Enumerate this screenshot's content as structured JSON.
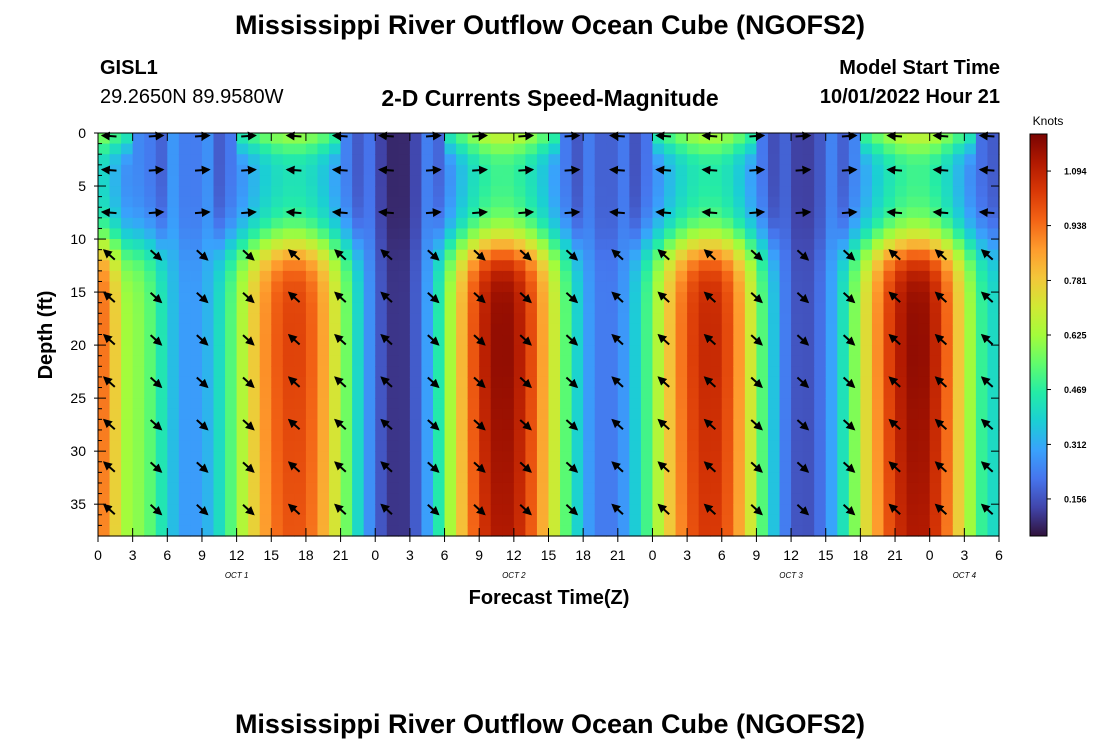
{
  "titles": {
    "main": "Mississippi River Outflow Ocean Cube (NGOFS2)",
    "repeat": "Mississippi River Outflow Ocean Cube (NGOFS2)"
  },
  "header": {
    "station": "GISL1",
    "coords": "29.2650N  89.9580W",
    "subtitle": "2-D Currents Speed-Magnitude",
    "model_start_label": "Model Start Time",
    "model_start_value": "10/01/2022 Hour 21"
  },
  "chart_data": {
    "type": "heatmap",
    "xlabel": "Forecast Time(Z)",
    "ylabel": "Depth (ft)",
    "xlim": [
      0,
      78
    ],
    "ylim": [
      0,
      38
    ],
    "x_tick_labels": [
      "0",
      "3",
      "6",
      "9",
      "12",
      "15",
      "18",
      "21",
      "0",
      "3",
      "6",
      "9",
      "12",
      "15",
      "18",
      "21",
      "0",
      "3",
      "6",
      "9",
      "12",
      "15",
      "18",
      "21",
      "0",
      "3",
      "6"
    ],
    "y_ticks": [
      0,
      5,
      10,
      15,
      20,
      25,
      30,
      35
    ],
    "day_labels": [
      {
        "text": "OCT 1",
        "hour": 12
      },
      {
        "text": "OCT 2",
        "hour": 36
      },
      {
        "text": "OCT 3",
        "hour": 60
      },
      {
        "text": "OCT 4",
        "hour": 75
      }
    ],
    "colorbar": {
      "title": "Knots",
      "range": [
        0.05,
        1.2
      ],
      "ticks": [
        "1.094",
        "0.938",
        "0.781",
        "0.625",
        "0.469",
        "0.312",
        "0.156"
      ],
      "tick_values": [
        1.094,
        0.938,
        0.781,
        0.625,
        0.469,
        0.312,
        0.156
      ]
    },
    "speed_peaks": [
      {
        "hour": 0,
        "speed": 0.95
      },
      {
        "hour": 3,
        "speed": 0.6
      },
      {
        "hour": 8,
        "speed": 0.28
      },
      {
        "hour": 17,
        "speed": 1.02
      },
      {
        "hour": 26,
        "speed": 0.1
      },
      {
        "hour": 35,
        "speed": 1.17
      },
      {
        "hour": 44,
        "speed": 0.22
      },
      {
        "hour": 53,
        "speed": 1.08
      },
      {
        "hour": 61,
        "speed": 0.15
      },
      {
        "hour": 71,
        "speed": 1.17
      },
      {
        "hour": 78,
        "speed": 0.4
      }
    ],
    "vector_hours": [
      1,
      5,
      9,
      13,
      17,
      21,
      25,
      29,
      33,
      37,
      41,
      45,
      49,
      53,
      57,
      61,
      65,
      69,
      73,
      77
    ],
    "vector_depths": [
      0,
      3.5,
      7.5,
      11.5,
      15.5,
      19.5,
      23.5,
      27.5,
      31.5,
      35.5
    ]
  },
  "colors": {
    "colormap": [
      "#30123b",
      "#4145ab",
      "#4675ed",
      "#39a2fc",
      "#1bcfd4",
      "#24eca6",
      "#61fc6c",
      "#a4fc3b",
      "#d1e834",
      "#f3c63a",
      "#fe9b2d",
      "#f36315",
      "#d93806",
      "#b11901",
      "#7a0402"
    ]
  }
}
